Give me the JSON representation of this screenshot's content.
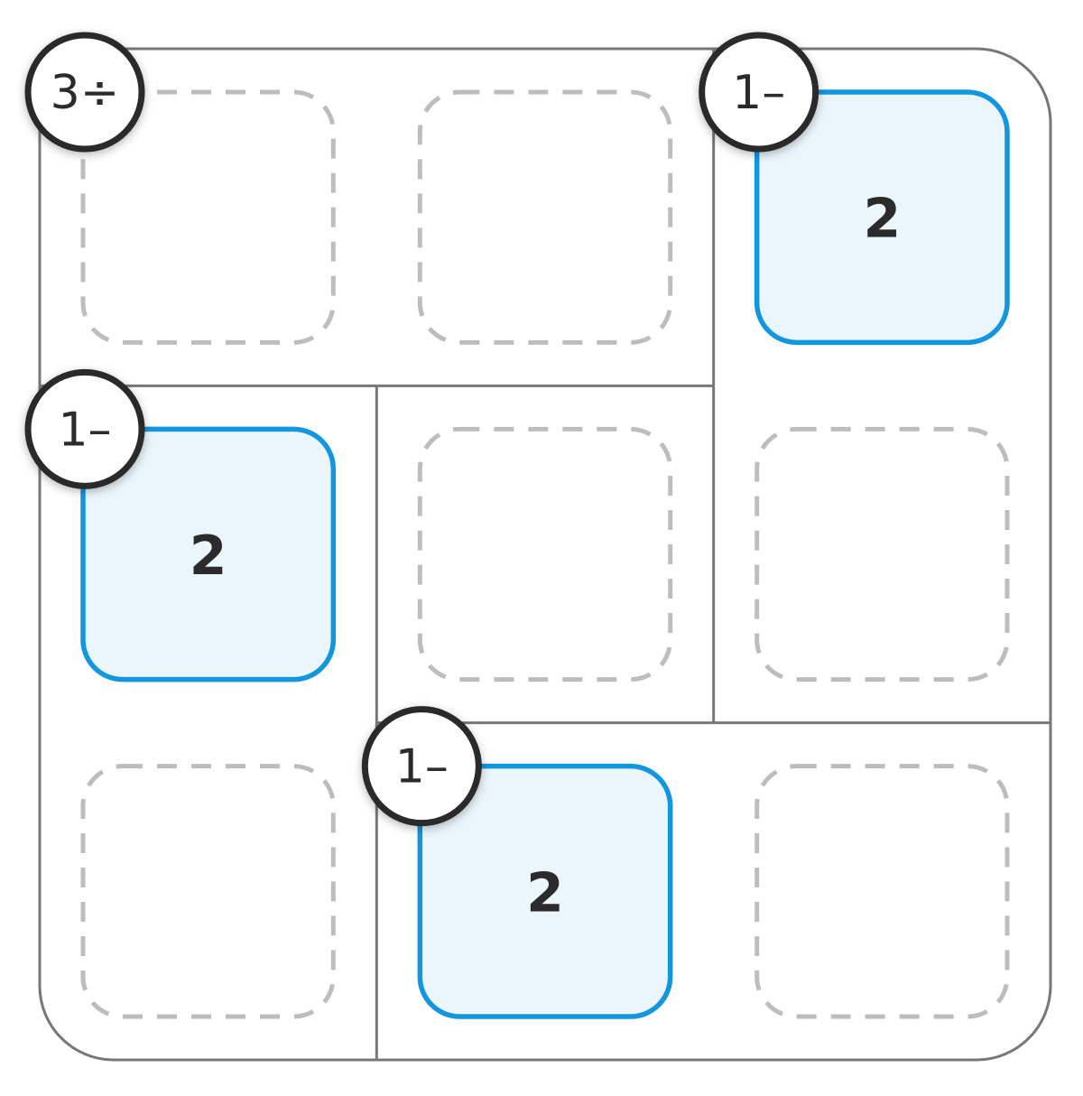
{
  "puzzle": {
    "type": "kenken",
    "size": 3,
    "cages": [
      {
        "clue": "3÷",
        "cells": [
          [
            0,
            0
          ],
          [
            0,
            1
          ]
        ]
      },
      {
        "clue": "1–",
        "cells": [
          [
            0,
            2
          ],
          [
            1,
            2
          ]
        ]
      },
      {
        "clue": "1–",
        "cells": [
          [
            1,
            0
          ],
          [
            2,
            0
          ]
        ]
      },
      {
        "clue": "1–",
        "cells": [
          [
            2,
            1
          ],
          [
            2,
            2
          ]
        ]
      },
      {
        "clue": "",
        "cells": [
          [
            1,
            1
          ]
        ]
      }
    ],
    "values": [
      [
        "",
        "",
        "2"
      ],
      [
        "2",
        "",
        ""
      ],
      [
        "",
        "2",
        ""
      ]
    ]
  },
  "colors": {
    "grid_line": "#777777",
    "empty_slot_border": "#bdbdbd",
    "filled_slot_border": "#1296df",
    "filled_slot_fill": "#eaf5fc",
    "text": "#2b2b2b"
  }
}
